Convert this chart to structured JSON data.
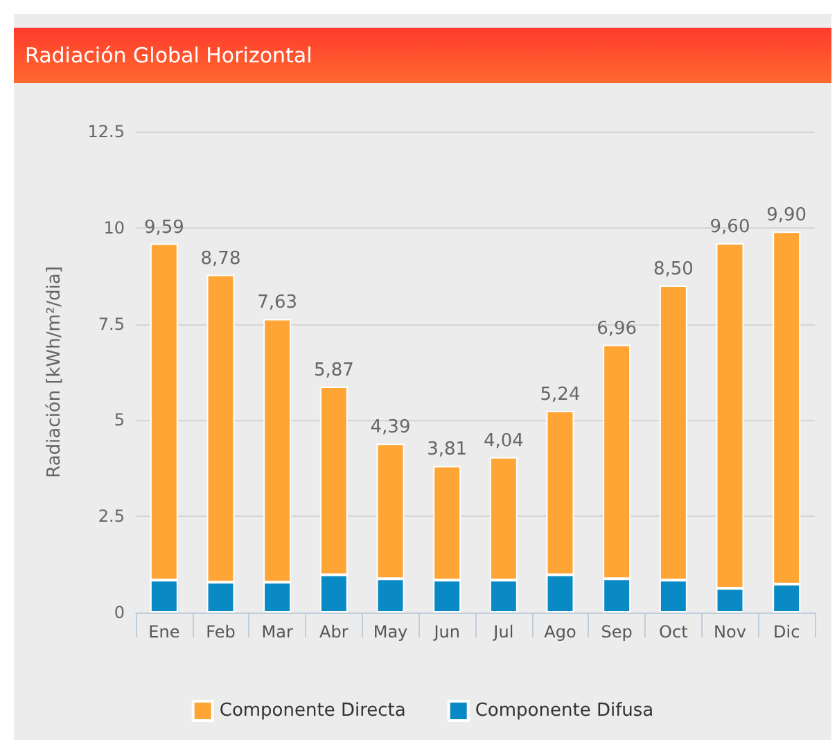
{
  "chart_data": {
    "type": "bar",
    "title": "Radiación Global Horizontal",
    "ylabel": "Radiación [kWh/m²/dia]",
    "categories": [
      "Ene",
      "Feb",
      "Mar",
      "Abr",
      "May",
      "Jun",
      "Jul",
      "Ago",
      "Sep",
      "Oct",
      "Nov",
      "Dic"
    ],
    "stacked": true,
    "series": [
      {
        "name": "Componente Difusa",
        "color": "#0a8ac4",
        "values": [
          0.84,
          0.79,
          0.79,
          0.98,
          0.88,
          0.84,
          0.84,
          0.98,
          0.88,
          0.84,
          0.63,
          0.74
        ]
      },
      {
        "name": "Componente Directa",
        "color": "#ffa535",
        "values": [
          8.75,
          7.99,
          6.84,
          4.89,
          3.51,
          2.97,
          3.2,
          4.26,
          6.08,
          7.66,
          8.97,
          9.16
        ]
      }
    ],
    "totals": [
      "9,59",
      "8,78",
      "7,63",
      "5,87",
      "4,39",
      "3,81",
      "4,04",
      "5,24",
      "6,96",
      "8,50",
      "9,60",
      "9,90"
    ],
    "ylim": [
      0,
      12.5
    ],
    "yticks": [
      0,
      2.5,
      5,
      7.5,
      10,
      12.5
    ],
    "grid": "y",
    "legend": "bottom"
  }
}
